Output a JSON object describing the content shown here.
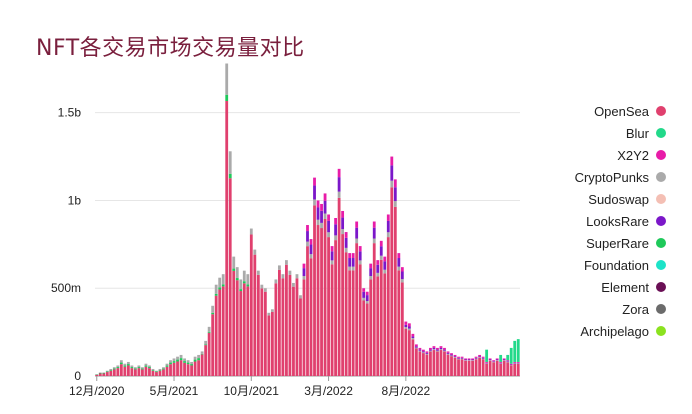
{
  "title": "NFT各交易市场交易量对比",
  "chart_data": {
    "type": "bar",
    "stacked": true,
    "title": "NFT各交易市场交易量对比",
    "xlabel": "",
    "ylabel": "",
    "ylim": [
      0,
      1.8
    ],
    "y_unit": "b",
    "y_ticks": [
      {
        "value": 0,
        "label": "0"
      },
      {
        "value": 0.5,
        "label": "500m"
      },
      {
        "value": 1.0,
        "label": "1b"
      },
      {
        "value": 1.5,
        "label": "1.5b"
      }
    ],
    "x_ticks": [
      {
        "index": 0,
        "label": "12月/2020"
      },
      {
        "index": 22,
        "label": "5月/2021"
      },
      {
        "index": 44,
        "label": "10月/2021"
      },
      {
        "index": 66,
        "label": "3月/2022"
      },
      {
        "index": 88,
        "label": "8月/2022"
      }
    ],
    "legend_position": "right",
    "series": [
      {
        "name": "OpenSea",
        "color": "#e0406e"
      },
      {
        "name": "Blur",
        "color": "#22d98a"
      },
      {
        "name": "X2Y2",
        "color": "#e81ca8"
      },
      {
        "name": "CryptoPunks",
        "color": "#aaaaaa"
      },
      {
        "name": "Sudoswap",
        "color": "#f4bfb4"
      },
      {
        "name": "LooksRare",
        "color": "#7b17c9"
      },
      {
        "name": "SuperRare",
        "color": "#1ec95a"
      },
      {
        "name": "Foundation",
        "color": "#1de3c8"
      },
      {
        "name": "Element",
        "color": "#6a0f55"
      },
      {
        "name": "Zora",
        "color": "#6b6b6b"
      },
      {
        "name": "Archipelago",
        "color": "#8be21f"
      }
    ],
    "totals": [
      0.01,
      0.02,
      0.02,
      0.03,
      0.04,
      0.05,
      0.06,
      0.09,
      0.07,
      0.08,
      0.06,
      0.05,
      0.06,
      0.05,
      0.07,
      0.06,
      0.04,
      0.03,
      0.04,
      0.05,
      0.07,
      0.09,
      0.1,
      0.11,
      0.12,
      0.1,
      0.09,
      0.08,
      0.11,
      0.12,
      0.14,
      0.2,
      0.28,
      0.4,
      0.52,
      0.56,
      0.58,
      1.78,
      1.28,
      0.68,
      0.62,
      0.55,
      0.6,
      0.58,
      0.84,
      0.72,
      0.6,
      0.52,
      0.5,
      0.36,
      0.38,
      0.55,
      0.63,
      0.58,
      0.66,
      0.6,
      0.53,
      0.58,
      0.46,
      0.64,
      0.86,
      0.78,
      1.13,
      1.0,
      0.98,
      1.04,
      0.92,
      0.74,
      0.9,
      1.18,
      0.94,
      0.82,
      0.7,
      0.7,
      0.88,
      0.74,
      0.5,
      0.48,
      0.64,
      0.88,
      0.66,
      0.77,
      0.68,
      0.92,
      1.25,
      1.12,
      0.7,
      0.62,
      0.31,
      0.3,
      0.24,
      0.18,
      0.16,
      0.15,
      0.14,
      0.16,
      0.17,
      0.16,
      0.17,
      0.16,
      0.14,
      0.13,
      0.12,
      0.11,
      0.11,
      0.1,
      0.1,
      0.1,
      0.11,
      0.12,
      0.11,
      0.15,
      0.1,
      0.09,
      0.1,
      0.12,
      0.1,
      0.12,
      0.16,
      0.2,
      0.21
    ],
    "blur_extra_last_bars": [
      0,
      0,
      0,
      0,
      0,
      0,
      0,
      0,
      0,
      0,
      0,
      0,
      0,
      0,
      0,
      0,
      0,
      0,
      0,
      0,
      0,
      0,
      0,
      0,
      0,
      0,
      0,
      0,
      0,
      0,
      0,
      0,
      0,
      0,
      0,
      0,
      0,
      0,
      0,
      0,
      0,
      0,
      0,
      0,
      0,
      0,
      0,
      0,
      0,
      0,
      0,
      0,
      0,
      0,
      0,
      0,
      0,
      0,
      0,
      0,
      0,
      0,
      0,
      0,
      0,
      0,
      0,
      0,
      0,
      0,
      0,
      0,
      0,
      0,
      0,
      0,
      0,
      0,
      0,
      0,
      0,
      0,
      0,
      0,
      0,
      0,
      0,
      0,
      0,
      0,
      0,
      0,
      0,
      0,
      0,
      0,
      0,
      0,
      0,
      0,
      0,
      0,
      0,
      0,
      0,
      0,
      0,
      0,
      0,
      0,
      0,
      0.07,
      0,
      0,
      0,
      0.04,
      0,
      0.03,
      0.09,
      0.12,
      0.13
    ]
  }
}
